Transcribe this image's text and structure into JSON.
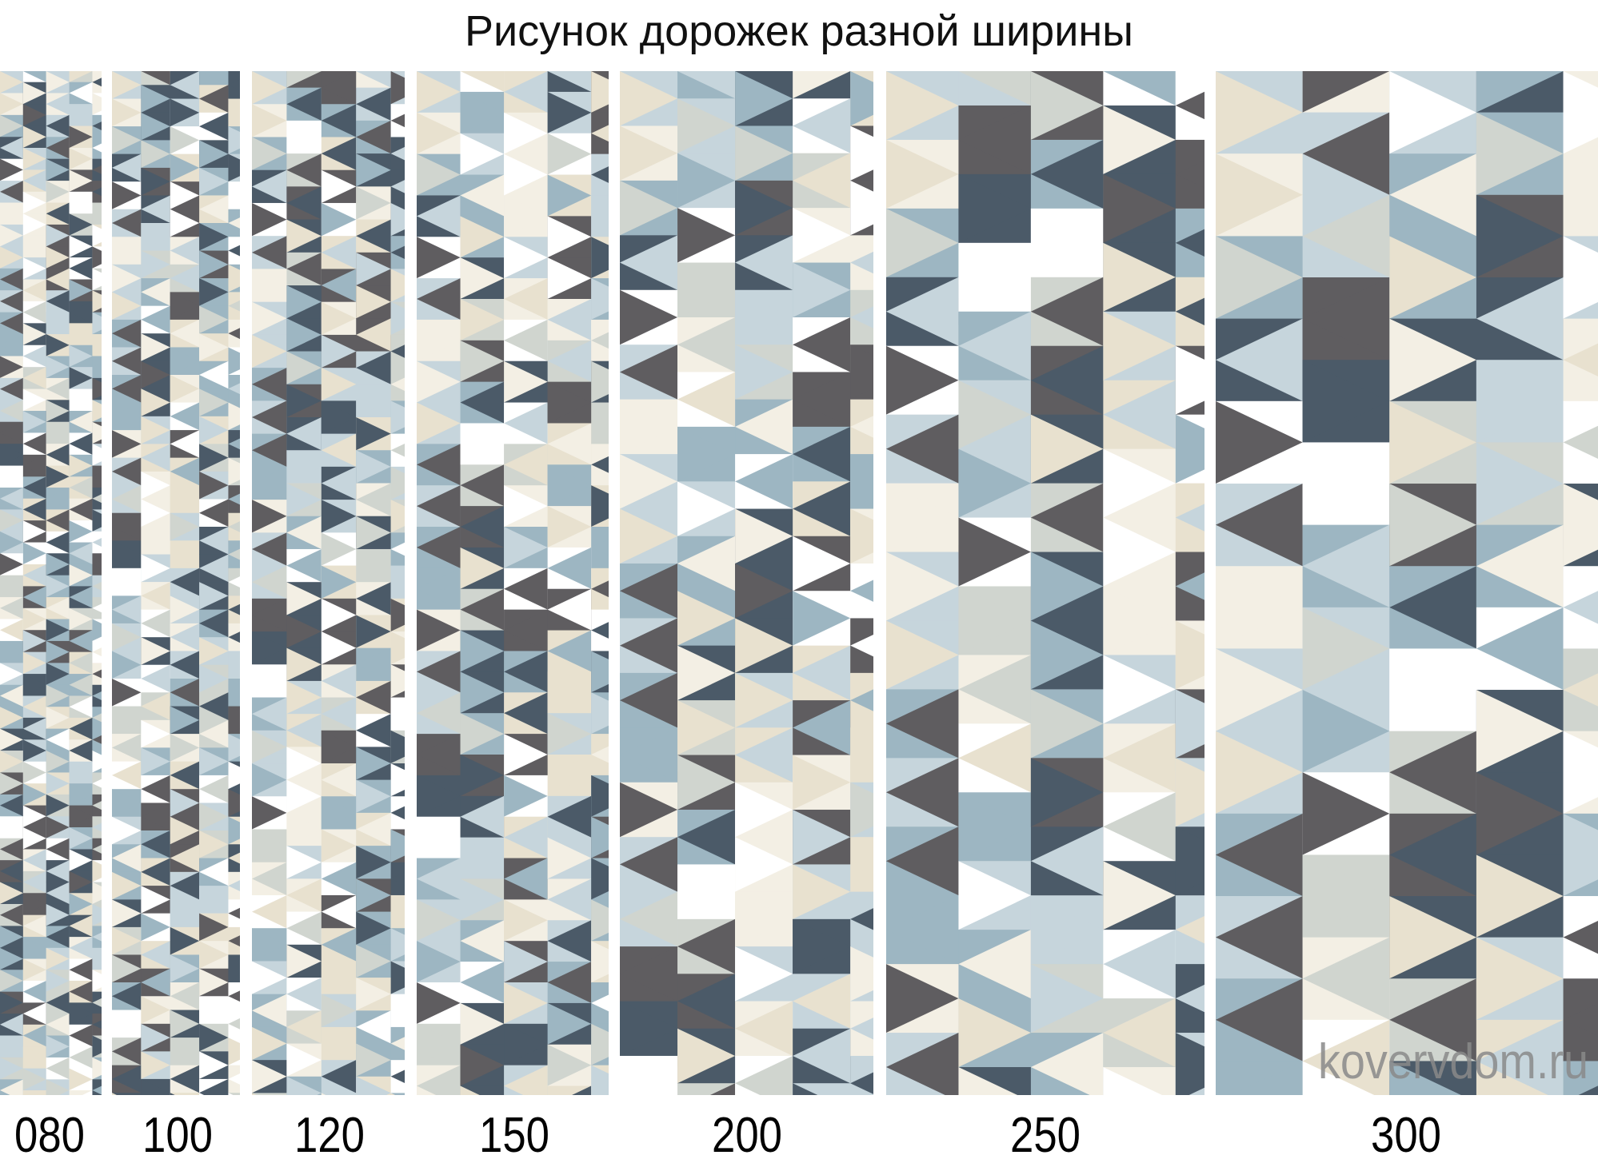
{
  "title": "Рисунок дорожек разной ширины",
  "runners": [
    {
      "width_label": "080"
    },
    {
      "width_label": "100"
    },
    {
      "width_label": "120"
    },
    {
      "width_label": "150"
    },
    {
      "width_label": "200"
    },
    {
      "width_label": "250"
    },
    {
      "width_label": "300"
    }
  ],
  "watermark": "kovervdom.ru",
  "palette": [
    "#4b5a68",
    "#5f5d60",
    "#9db6c2",
    "#c6d5dc",
    "#e8e1cf",
    "#ffffff",
    "#d0d5cf",
    "#f3efe4"
  ]
}
